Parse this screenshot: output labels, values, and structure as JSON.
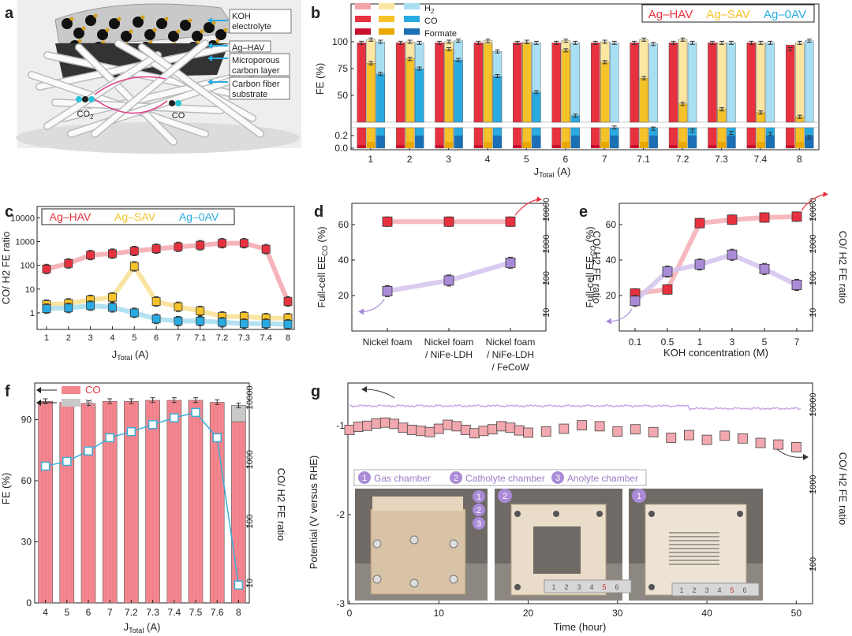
{
  "panels": {
    "a": {
      "letter": "a",
      "labels": {
        "koh": "KOH\nelectrolyte",
        "ag": "Ag–HAV",
        "micro": "Microporous\ncarbon layer",
        "cfs": "Carbon fiber\nsubstrate",
        "co2": "CO2",
        "co": "CO"
      }
    },
    "b": {
      "letter": "b"
    },
    "c": {
      "letter": "c"
    },
    "d": {
      "letter": "d"
    },
    "e": {
      "letter": "e"
    },
    "f": {
      "letter": "f"
    },
    "g": {
      "letter": "g"
    }
  },
  "colors": {
    "HAV": "#e8313f",
    "HAV_light": "#f4a3aa",
    "SAV": "#f5c22a",
    "SAV_light": "#fbe6a2",
    "OAV": "#29abe2",
    "OAV_light": "#a8dff2",
    "formate_HAV": "#c8102e",
    "formate_SAV": "#e8a800",
    "formate_OAV": "#1b6fb5",
    "purple": "#a07fd0",
    "purple_light": "#d6c6ee",
    "pink_line": "#f4a7ad",
    "co_bar": "#f4868f",
    "h2_bar": "#c8c8c8",
    "f_line": "#3aaed8"
  },
  "chart_data": [
    {
      "id": "b",
      "type": "bar",
      "ylabel": "FE (%)",
      "xlabel": "J",
      "xlabel_sub": "Total",
      "xlabel_unit": " (A)",
      "categories": [
        "1",
        "2",
        "3",
        "4",
        "5",
        "6",
        "7",
        "7.1",
        "7.2",
        "7.3",
        "7.4",
        "8"
      ],
      "yticks_upper": [
        "100",
        "75",
        "50"
      ],
      "yticks_lower": [
        "0.2",
        "0.0"
      ],
      "legend_types": [
        "H2",
        "CO",
        "Formate"
      ],
      "legend_catalysts": [
        "Ag–HAV",
        "Ag–SAV",
        "Ag–0AV"
      ],
      "series": [
        {
          "name": "Ag–HAV",
          "total": [
            99,
            99,
            99,
            99,
            99,
            99,
            99,
            99,
            99,
            99,
            99,
            93
          ],
          "co": [
            99,
            99,
            99,
            99,
            99,
            99,
            99,
            99,
            99,
            99,
            99,
            97
          ],
          "formate": [
            0.05,
            0.05,
            0.05,
            0.05,
            0.05,
            0.05,
            0.05,
            0.05,
            0.05,
            0.05,
            0.05,
            0.05
          ]
        },
        {
          "name": "Ag–SAV",
          "total": [
            102,
            100,
            100,
            101,
            100,
            101,
            100,
            102,
            102,
            99,
            99,
            99
          ],
          "co": [
            80,
            84,
            93,
            98,
            98,
            92,
            81,
            66,
            42,
            37,
            34,
            30
          ],
          "formate": [
            0.1,
            0.1,
            0.1,
            0.1,
            0.1,
            0.1,
            0.1,
            0.1,
            0.1,
            0.1,
            0.1,
            0.1
          ]
        },
        {
          "name": "Ag–0AV",
          "total": [
            100,
            99,
            101,
            91,
            99,
            99,
            99,
            98,
            99,
            99,
            99,
            101
          ],
          "co": [
            70,
            75,
            83,
            68,
            53,
            31,
            20,
            19,
            17,
            15,
            14,
            11
          ],
          "formate": [
            0.2,
            0.2,
            0.2,
            0.2,
            0.2,
            0.2,
            0.2,
            0.2,
            0.2,
            0.2,
            0.2,
            0.2
          ]
        }
      ]
    },
    {
      "id": "c",
      "type": "line",
      "ylabel": "CO/ H2 FE ratio",
      "xlabel": "J",
      "xlabel_sub": "Total",
      "xlabel_unit": " (A)",
      "categories": [
        "1",
        "2",
        "3",
        "4",
        "5",
        "6",
        "7",
        "7.1",
        "7.2",
        "7.3",
        "7.4",
        "8"
      ],
      "yticks": [
        "10000",
        "1000",
        "100",
        "10",
        "1"
      ],
      "yscale": "log",
      "ylim": [
        0.2,
        30000
      ],
      "series": [
        {
          "name": "Ag–HAV",
          "values": [
            70,
            120,
            270,
            310,
            400,
            500,
            600,
            700,
            850,
            850,
            480,
            3
          ]
        },
        {
          "name": "Ag–SAV",
          "values": [
            2.2,
            2.5,
            3.5,
            4.5,
            90,
            3,
            1.8,
            1.2,
            0.7,
            0.7,
            0.6,
            0.6
          ]
        },
        {
          "name": "Ag–0AV",
          "values": [
            1.5,
            1.6,
            2,
            1.7,
            1,
            0.55,
            0.45,
            0.45,
            0.4,
            0.35,
            0.35,
            0.33
          ]
        }
      ]
    },
    {
      "id": "d",
      "type": "line",
      "ylabel_left": "Full-cell EE",
      "ylabel_left_sub": "CO",
      "ylabel_left_unit": " (%)",
      "ylabel_right": "CO/ H2 FE ratio",
      "categories": [
        "Nickel foam",
        "Nickel foam\n/ NiFe-LDH",
        "Nickel foam\n/ NiFe-LDH\n/ FeCoW"
      ],
      "yticks_left": [
        "60",
        "40",
        "20"
      ],
      "yticks_right": [
        "10000",
        "1000",
        "100",
        "10"
      ],
      "ylim_left": [
        0,
        72
      ],
      "ylim_right": [
        3,
        30000
      ],
      "series": [
        {
          "name": "EE",
          "values": [
            22.5,
            28.5,
            38.5
          ]
        },
        {
          "name": "ratio",
          "values": [
            8000,
            8000,
            8000
          ]
        }
      ]
    },
    {
      "id": "e",
      "type": "line",
      "ylabel_left": "Full-cell EE",
      "ylabel_left_sub": "CO",
      "ylabel_left_unit": " (%)",
      "ylabel_right": "CO/ H2 FE ratio",
      "xlabel": "KOH concentration (M)",
      "categories": [
        "0.1",
        "0.5",
        "1",
        "3",
        "5",
        "7"
      ],
      "yticks_left": [
        "60",
        "40",
        "20"
      ],
      "yticks_right": [
        "10000",
        "1000",
        "100",
        "10"
      ],
      "ylim_left": [
        0,
        72
      ],
      "ylim_right": [
        3,
        30000
      ],
      "series": [
        {
          "name": "EE",
          "values": [
            17,
            33.5,
            37.5,
            43,
            35,
            26
          ]
        },
        {
          "name": "ratio",
          "values": [
            45,
            60,
            7200,
            9200,
            10800,
            11500
          ]
        }
      ]
    },
    {
      "id": "f",
      "type": "bar",
      "ylabel": "FE (%)",
      "ylabel_right": "CO/ H2 FE ratio",
      "xlabel": "J",
      "xlabel_sub": "Total",
      "xlabel_unit": " (A)",
      "categories": [
        "4",
        "5",
        "6",
        "7",
        "7.2",
        "7.3",
        "7.4",
        "7.5",
        "7.6",
        "8"
      ],
      "yticks": [
        "90",
        "60",
        "30",
        "0"
      ],
      "yticks_right": [
        "10000",
        "1000",
        "100",
        "10"
      ],
      "legend": [
        "CO",
        "H2"
      ],
      "series": [
        {
          "name": "CO",
          "values": [
            99,
            98.5,
            98,
            99,
            99,
            99.5,
            99.5,
            99.5,
            98.5,
            89
          ]
        },
        {
          "name": "H2",
          "values": [
            0.1,
            0.1,
            0.1,
            0.1,
            0.1,
            0.1,
            0.1,
            0.1,
            0.1,
            8
          ]
        },
        {
          "name": "CO/H2 FE ratio",
          "values": [
            1000,
            1200,
            1800,
            3000,
            3800,
            5000,
            6500,
            8000,
            3000,
            10
          ]
        }
      ]
    },
    {
      "id": "g",
      "type": "scatter",
      "ylabel": "Potential (V versus RHE)",
      "ylabel_right": "CO/ H2 FE ratio",
      "xlabel": "Time (hour)",
      "xticks": [
        "0",
        "10",
        "20",
        "30",
        "40",
        "50"
      ],
      "yticks": [
        "-1",
        "-2",
        "-3"
      ],
      "yticks_right": [
        "10000",
        "1000",
        "100"
      ],
      "legend_chambers": [
        "Gas chamber",
        "Catholyte chamber",
        "Anolyte chamber"
      ],
      "photo_numbers": [
        "1",
        "2",
        "3"
      ],
      "ruler": [
        "1",
        "2",
        "3",
        "4",
        "5",
        "6"
      ],
      "potential_series": {
        "name": "Potential",
        "values": [
          -0.72,
          -0.7,
          -0.7,
          -0.72,
          -0.71,
          -0.71,
          -0.72,
          -0.73,
          -0.72,
          -0.72,
          -0.72,
          -0.71,
          -0.72,
          -0.72,
          -0.72,
          -0.72,
          -0.73,
          -0.72,
          -0.72,
          -0.72,
          -0.72,
          -0.76,
          -0.75,
          -0.75,
          -0.75,
          -0.75,
          -0.75
        ]
      },
      "ratio_series": {
        "name": "CO/H2 FE ratio",
        "x": [
          0,
          1,
          2,
          3,
          4,
          5,
          6,
          7,
          8,
          9,
          10,
          11,
          12,
          13,
          14,
          15,
          16,
          17,
          18,
          19,
          20,
          22,
          24,
          26,
          28,
          30,
          32,
          34,
          36,
          38,
          40,
          42,
          44,
          46,
          48,
          50
        ],
        "values": [
          6200,
          6800,
          7000,
          7500,
          7700,
          7400,
          6600,
          6200,
          6000,
          5800,
          6400,
          7200,
          6900,
          6200,
          5600,
          6000,
          6300,
          6900,
          6600,
          6100,
          5700,
          5900,
          6400,
          7100,
          6900,
          5900,
          6300,
          5800,
          4900,
          5300,
          4600,
          5200,
          4800,
          4200,
          4000,
          3700
        ]
      }
    }
  ]
}
